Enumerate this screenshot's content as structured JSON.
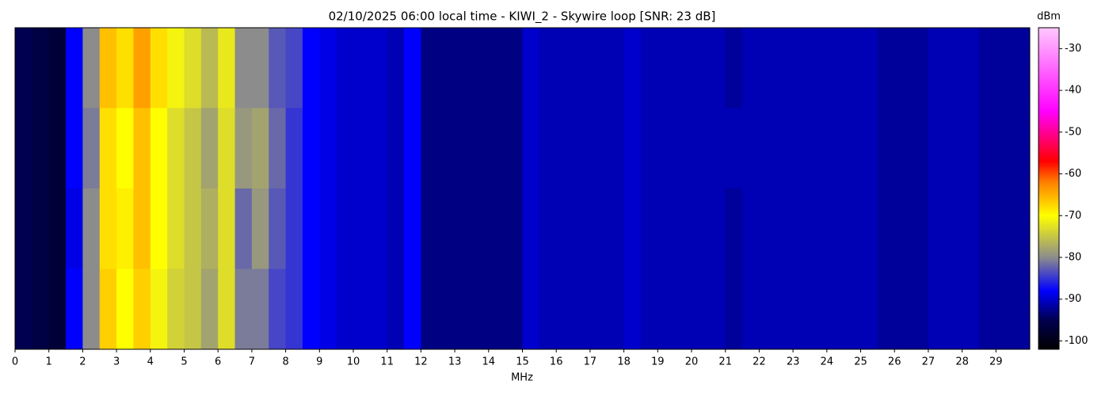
{
  "chart_data": {
    "type": "heatmap",
    "title": "02/10/2025 06:00 local time - KIWI_2 - Skywire loop [SNR: 23 dB]",
    "xlabel": "MHz",
    "colorbar_label": "dBm",
    "xlim": [
      0,
      30
    ],
    "xticks": [
      0,
      1,
      2,
      3,
      4,
      5,
      6,
      7,
      8,
      9,
      10,
      11,
      12,
      13,
      14,
      15,
      16,
      17,
      18,
      19,
      20,
      21,
      22,
      23,
      24,
      25,
      26,
      27,
      28,
      29
    ],
    "clim": [
      -102,
      -25
    ],
    "cticks": [
      -30,
      -40,
      -50,
      -60,
      -70,
      -80,
      -90,
      -100
    ],
    "colorscale": [
      [
        -102,
        "#000000"
      ],
      [
        -95,
        "#000050"
      ],
      [
        -88,
        "#0000ff"
      ],
      [
        -80,
        "#8c8c8c"
      ],
      [
        -70,
        "#ffff00"
      ],
      [
        -62,
        "#ff8000"
      ],
      [
        -57,
        "#ff0000"
      ],
      [
        -45,
        "#ff00ff"
      ],
      [
        -25,
        "#ffc8ff"
      ]
    ],
    "x_bins": [
      0,
      0.5,
      1,
      1.5,
      2,
      2.5,
      3,
      3.5,
      4,
      4.5,
      5,
      5.5,
      6,
      6.5,
      7,
      7.5,
      8,
      8.5,
      9,
      9.5,
      10,
      10.5,
      11,
      11.5,
      12,
      12.5,
      13,
      13.5,
      14,
      14.5,
      15,
      15.5,
      16,
      16.5,
      17,
      17.5,
      18,
      18.5,
      19,
      19.5,
      20,
      20.5,
      21,
      21.5,
      22,
      22.5,
      23,
      23.5,
      24,
      24.5,
      25,
      25.5,
      26,
      26.5,
      27,
      27.5,
      28,
      28.5,
      29,
      29.5,
      30
    ],
    "z": [
      [
        -95,
        -96,
        -97,
        -88,
        -80,
        -66,
        -68,
        -64,
        -68,
        -71,
        -73,
        -76,
        -72,
        -80,
        -80,
        -83,
        -84,
        -88,
        -89,
        -90,
        -90,
        -90,
        -91,
        -88,
        -93,
        -93,
        -93,
        -93,
        -93,
        -93,
        -90,
        -91,
        -91,
        -91,
        -91,
        -91,
        -90,
        -91,
        -91,
        -91,
        -91,
        -91,
        -92,
        -91,
        -91,
        -91,
        -91,
        -91,
        -91,
        -91,
        -91,
        -92,
        -92,
        -92,
        -91,
        -91,
        -91,
        -92,
        -92,
        -92
      ],
      [
        -95,
        -96,
        -97,
        -88,
        -81,
        -68,
        -70,
        -66,
        -70,
        -73,
        -75,
        -78,
        -73,
        -79,
        -78,
        -82,
        -85,
        -88,
        -89,
        -90,
        -90,
        -90,
        -91,
        -88,
        -93,
        -93,
        -93,
        -93,
        -93,
        -93,
        -90,
        -91,
        -91,
        -91,
        -91,
        -91,
        -90,
        -91,
        -91,
        -91,
        -91,
        -91,
        -91,
        -91,
        -91,
        -91,
        -91,
        -91,
        -91,
        -91,
        -91,
        -92,
        -92,
        -92,
        -91,
        -91,
        -91,
        -92,
        -92,
        -92
      ],
      [
        -95,
        -96,
        -97,
        -89,
        -80,
        -68,
        -69,
        -66,
        -70,
        -73,
        -75,
        -77,
        -73,
        -82,
        -79,
        -83,
        -85,
        -88,
        -89,
        -90,
        -90,
        -90,
        -91,
        -88,
        -93,
        -93,
        -93,
        -93,
        -93,
        -93,
        -90,
        -91,
        -91,
        -91,
        -91,
        -91,
        -90,
        -91,
        -91,
        -91,
        -91,
        -91,
        -92,
        -91,
        -91,
        -91,
        -91,
        -91,
        -91,
        -91,
        -91,
        -92,
        -92,
        -92,
        -91,
        -91,
        -91,
        -92,
        -92,
        -92
      ],
      [
        -95,
        -96,
        -97,
        -88,
        -80,
        -67,
        -70,
        -67,
        -71,
        -74,
        -75,
        -78,
        -73,
        -81,
        -81,
        -84,
        -85,
        -88,
        -89,
        -90,
        -90,
        -90,
        -91,
        -88,
        -93,
        -93,
        -93,
        -93,
        -93,
        -93,
        -90,
        -91,
        -91,
        -91,
        -91,
        -91,
        -90,
        -91,
        -91,
        -91,
        -91,
        -91,
        -92,
        -91,
        -91,
        -91,
        -91,
        -91,
        -91,
        -91,
        -91,
        -92,
        -92,
        -92,
        -91,
        -91,
        -91,
        -92,
        -92,
        -92
      ]
    ]
  }
}
